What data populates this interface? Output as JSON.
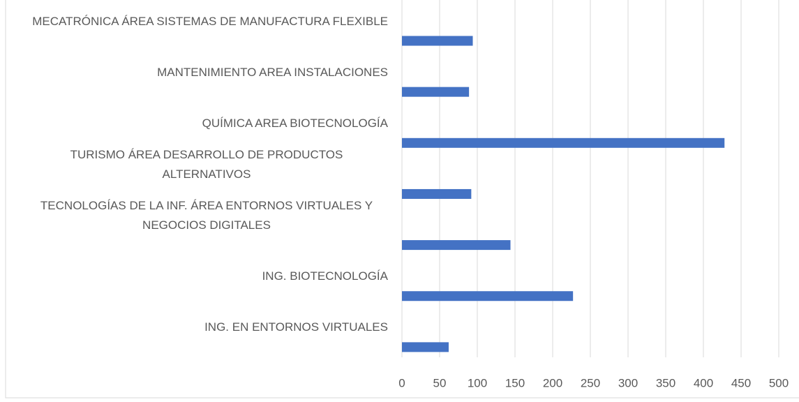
{
  "chart_data": {
    "type": "bar",
    "orientation": "horizontal",
    "categories": [
      "MECATRÓNICA ÁREA SISTEMAS DE MANUFACTURA FLEXIBLE",
      "MANTENIMIENTO AREA INSTALACIONES",
      "QUÍMICA AREA BIOTECNOLOGÍA",
      "TURISMO ÁREA DESARROLLO DE PRODUCTOS ALTERNATIVOS",
      "TECNOLOGÍAS DE LA INF. ÁREA ENTORNOS VIRTUALES Y NEGOCIOS DIGITALES",
      "ING. BIOTECNOLOGÍA",
      "ING. EN ENTORNOS VIRTUALES"
    ],
    "values": [
      94,
      89,
      428,
      92,
      144,
      227,
      62
    ],
    "color": "#4472c4",
    "xlim": [
      0,
      500
    ],
    "xticks": [
      0,
      50,
      100,
      150,
      200,
      250,
      300,
      350,
      400,
      450,
      500
    ],
    "grid": true
  }
}
